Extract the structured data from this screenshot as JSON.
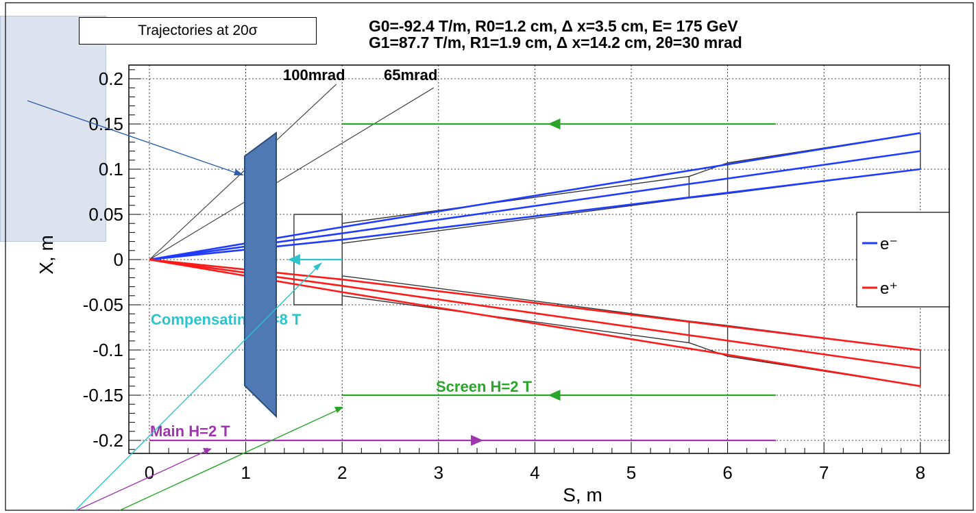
{
  "chart_data": {
    "type": "line",
    "title": "Trajectories at 20σ",
    "params": [
      "G0=-92.4 T/m, R0=1.2 cm,  Δ x=3.5 cm,  E= 175 GeV",
      "G1=87.7 T/m,  R1=1.9 cm,  Δ x=14.2 cm, 2θ=30 mrad"
    ],
    "xlabel": "S, m",
    "ylabel": "X, m",
    "xlim": [
      -0.2,
      8.3
    ],
    "ylim": [
      -0.21,
      0.21
    ],
    "xticks": [
      0,
      1,
      2,
      3,
      4,
      5,
      6,
      7,
      8
    ],
    "yticks": [
      0.2,
      0.15,
      0.1,
      0.05,
      0,
      -0.05,
      -0.1,
      -0.15,
      -0.2
    ],
    "ytick_labels": [
      "0.2",
      "0.15",
      "0.1",
      "0.05",
      "0",
      "-0.05",
      "-0.1",
      "-0.15",
      "-0.2"
    ],
    "grid": true,
    "legend": {
      "position": "right",
      "entries": [
        {
          "label": "e⁻",
          "color": "#1f3bff"
        },
        {
          "label": "e⁺",
          "color": "#ff1a1a"
        }
      ]
    },
    "series": [
      {
        "name": "e-",
        "color": "#1f3bff",
        "lines": [
          {
            "x": [
              0,
              2,
              8
            ],
            "y": [
              0,
              0.022,
              0.1
            ]
          },
          {
            "x": [
              0,
              2,
              8
            ],
            "y": [
              0,
              0.029,
              0.12
            ]
          },
          {
            "x": [
              0,
              2,
              8
            ],
            "y": [
              0,
              0.036,
              0.14
            ]
          }
        ]
      },
      {
        "name": "e+",
        "color": "#ff1a1a",
        "lines": [
          {
            "x": [
              0,
              2,
              8
            ],
            "y": [
              0,
              -0.022,
              -0.1
            ]
          },
          {
            "x": [
              0,
              2,
              8
            ],
            "y": [
              0,
              -0.029,
              -0.12
            ]
          },
          {
            "x": [
              0,
              2,
              8
            ],
            "y": [
              0,
              -0.036,
              -0.14
            ]
          }
        ]
      }
    ],
    "angle_lines": [
      {
        "label": "100mrad",
        "x": [
          0,
          1.94
        ],
        "y": [
          0,
          0.194
        ]
      },
      {
        "label": "65mrad",
        "x": [
          0,
          2.95
        ],
        "y": [
          0,
          0.19
        ]
      }
    ],
    "aperture_outlines": [
      {
        "x": [
          1.5,
          2,
          2,
          1.5,
          1.5
        ],
        "y": [
          0.05,
          0.05,
          -0.05,
          -0.05,
          0.05
        ]
      },
      {
        "x": [
          2,
          5.6,
          6,
          8,
          8,
          6,
          5.6,
          2,
          2
        ],
        "y": [
          0.04,
          0.092,
          0.107,
          0.14,
          0.1,
          0.073,
          0.068,
          0.018,
          0.04
        ]
      },
      {
        "x": [
          2,
          5.6,
          6,
          8,
          8,
          6,
          5.6,
          2,
          2
        ],
        "y": [
          -0.018,
          -0.068,
          -0.073,
          -0.1,
          -0.14,
          -0.107,
          -0.092,
          -0.04,
          -0.018
        ]
      },
      {
        "x": [
          5.6,
          5.6
        ],
        "y": [
          0.092,
          0.068
        ]
      },
      {
        "x": [
          5.6,
          5.6
        ],
        "y": [
          -0.068,
          -0.092
        ]
      },
      {
        "x": [
          6,
          6
        ],
        "y": [
          0.107,
          0.073
        ]
      },
      {
        "x": [
          6,
          6
        ],
        "y": [
          -0.073,
          -0.107
        ]
      }
    ],
    "field_regions": [
      {
        "label": "Main H=2 T",
        "color": "#a033b0",
        "x": [
          0,
          6.5
        ],
        "y": -0.2,
        "arrow_at": 3.4,
        "direction": "right"
      },
      {
        "label": "Screen H=2 T",
        "color": "#2aa52a",
        "x": [
          2,
          6.5
        ],
        "y": -0.15,
        "arrow_at": 4.2,
        "direction": "left"
      },
      {
        "label": "",
        "color": "#2aa52a",
        "x": [
          2,
          6.5
        ],
        "y": 0.15,
        "arrow_at": 4.2,
        "direction": "left"
      },
      {
        "label": "Compensating H=8 T",
        "color": "#2bc4cc",
        "x": [
          1.5,
          2
        ],
        "y": 0,
        "arrow_at": 1.5,
        "direction": "left"
      }
    ]
  },
  "title_text": "Trajectories at 20σ",
  "param_line_1": "G0=-92.4 T/m, R0=1.2 cm,  Δ x=3.5 cm,  E= 175 GeV",
  "param_line_2": "G1=87.7 T/m,  R1=1.9 cm,  Δ x=14.2 cm, 2θ=30 mrad",
  "colors": {
    "panel": "#dce3ef",
    "shape": "#4f79b2",
    "shape_border": "#2c4d7a",
    "pointer": "#2e5fa8"
  }
}
